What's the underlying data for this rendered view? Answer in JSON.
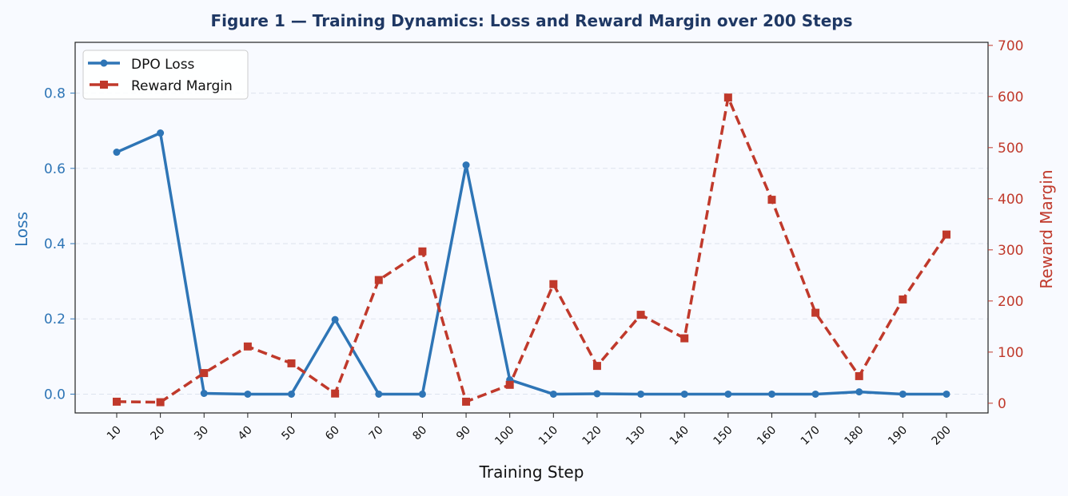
{
  "chart_data": {
    "type": "line",
    "title": "Figure 1 — Training Dynamics: Loss and Reward Margin over 200 Steps",
    "xlabel": "Training Step",
    "ylabel_left": "Loss",
    "ylabel_right": "Reward Margin",
    "x": [
      10,
      20,
      30,
      40,
      50,
      60,
      70,
      80,
      90,
      100,
      110,
      120,
      130,
      140,
      150,
      160,
      170,
      180,
      190,
      200
    ],
    "ylim_left": [
      -0.05,
      0.935
    ],
    "ylim_right": [
      -19,
      706
    ],
    "yticks_left": [
      "0.0",
      "0.2",
      "0.4",
      "0.6",
      "0.8"
    ],
    "yticks_right": [
      "0",
      "100",
      "200",
      "300",
      "400",
      "500",
      "600",
      "700"
    ],
    "grid": "horizontal dashed",
    "legend_position": "top-left",
    "series": [
      {
        "name": "DPO Loss",
        "axis": "left",
        "color": "#2e75b6",
        "style": "solid",
        "marker": "circle",
        "values": [
          0.643,
          0.694,
          0.002,
          0.0,
          0.0,
          0.198,
          0.0,
          0.0,
          0.609,
          0.038,
          0.0,
          0.001,
          0.0,
          0.0,
          0.0,
          0.0,
          0.0,
          0.006,
          0.0,
          0.0
        ]
      },
      {
        "name": "Reward Margin",
        "axis": "right",
        "color": "#c0392b",
        "style": "dashed",
        "marker": "square",
        "values": [
          3,
          2,
          59,
          111,
          78,
          19,
          241,
          297,
          3,
          36,
          233,
          73,
          173,
          127,
          598,
          398,
          177,
          53,
          203,
          330
        ]
      }
    ]
  }
}
